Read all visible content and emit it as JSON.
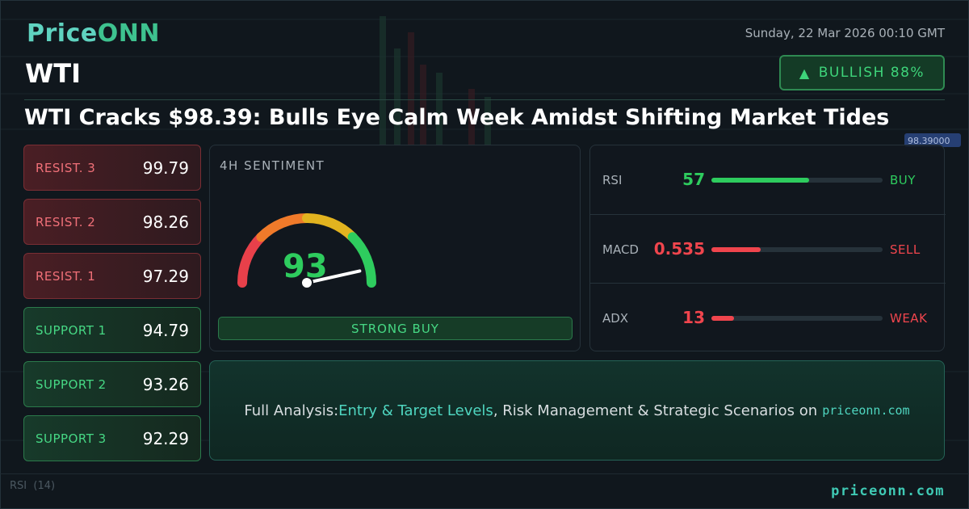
{
  "brand": {
    "name_prefix": "Price",
    "name_suffix": "ONN"
  },
  "header": {
    "symbol": "WTI",
    "datetime": "Sunday, 22 Mar 2026 00:10 GMT",
    "sentiment_badge": {
      "icon": "triangle-up-icon",
      "label": "BULLISH 88%"
    },
    "headline": "WTI Cracks $98.39: Bulls Eye Calm Week Amidst Shifting Market Tides"
  },
  "levels": [
    {
      "label": "RESIST. 3",
      "value": "99.79",
      "kind": "resist"
    },
    {
      "label": "RESIST. 2",
      "value": "98.26",
      "kind": "resist"
    },
    {
      "label": "RESIST. 1",
      "value": "97.29",
      "kind": "resist"
    },
    {
      "label": "SUPPORT 1",
      "value": "94.79",
      "kind": "support"
    },
    {
      "label": "SUPPORT 2",
      "value": "93.26",
      "kind": "support"
    },
    {
      "label": "SUPPORT 3",
      "value": "92.29",
      "kind": "support"
    }
  ],
  "gauge": {
    "title": "4H SENTIMENT",
    "value": "93",
    "level": 0.93,
    "signal": "STRONG BUY"
  },
  "indicators": [
    {
      "name": "RSI",
      "value": "57",
      "level": 0.57,
      "signal": "BUY",
      "color": "#2ecc5e"
    },
    {
      "name": "MACD",
      "value": "0.535",
      "level": 0.29,
      "signal": "SELL",
      "color": "#f0454d"
    },
    {
      "name": "ADX",
      "value": "13",
      "level": 0.13,
      "signal": "WEAK",
      "color": "#f0454d"
    }
  ],
  "cta": {
    "prefix": "Full Analysis: ",
    "highlight": "Entry & Target Levels",
    "middle": ", Risk Management & Strategic Scenarios on ",
    "site": "priceonn.com"
  },
  "background": {
    "price_label": "98.39000",
    "rsi_label": "RSI",
    "rsi_period": "(14)"
  },
  "footer": {
    "site": "priceonn.com"
  },
  "colors": {
    "accent": "#3fc9b4",
    "bullish": "#2ecc5e",
    "bearish": "#f0454d",
    "background": "#10171d"
  }
}
